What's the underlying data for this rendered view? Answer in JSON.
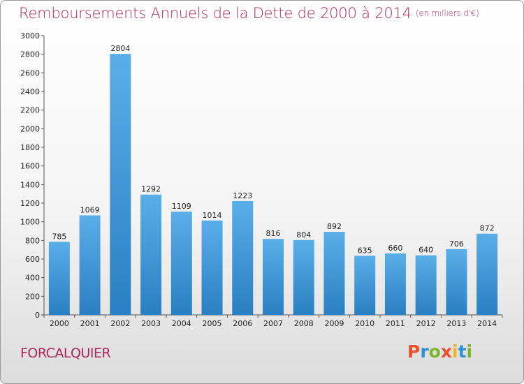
{
  "title": "Remboursements Annuels de la Dette de 2000 à 2014",
  "subtitle": "(en milliers d'€)",
  "commune": "FORCALQUIER",
  "logo": {
    "letters": [
      "P",
      "r",
      "o",
      "x",
      "i",
      "t",
      "i"
    ],
    "colors": [
      "#e8512b",
      "#2d8fd4",
      "#7cb52a",
      "#e8512b",
      "#f0b323",
      "#2d8fd4",
      "#7cb52a"
    ]
  },
  "colors": {
    "bar_top": "#5aaee8",
    "bar_bottom": "#2a7fc2",
    "title": "#b0245e"
  },
  "chart_data": {
    "type": "bar",
    "categories": [
      "2000",
      "2001",
      "2002",
      "2003",
      "2004",
      "2005",
      "2006",
      "2007",
      "2008",
      "2009",
      "2010",
      "2011",
      "2012",
      "2013",
      "2014"
    ],
    "values": [
      785,
      1069,
      2804,
      1292,
      1109,
      1014,
      1223,
      816,
      804,
      892,
      635,
      660,
      640,
      706,
      872
    ],
    "ylim": [
      0,
      3000
    ],
    "yticks": [
      0,
      200,
      400,
      600,
      800,
      1000,
      1200,
      1400,
      1600,
      1800,
      2000,
      2200,
      2400,
      2600,
      2800,
      3000
    ],
    "grid": false
  }
}
